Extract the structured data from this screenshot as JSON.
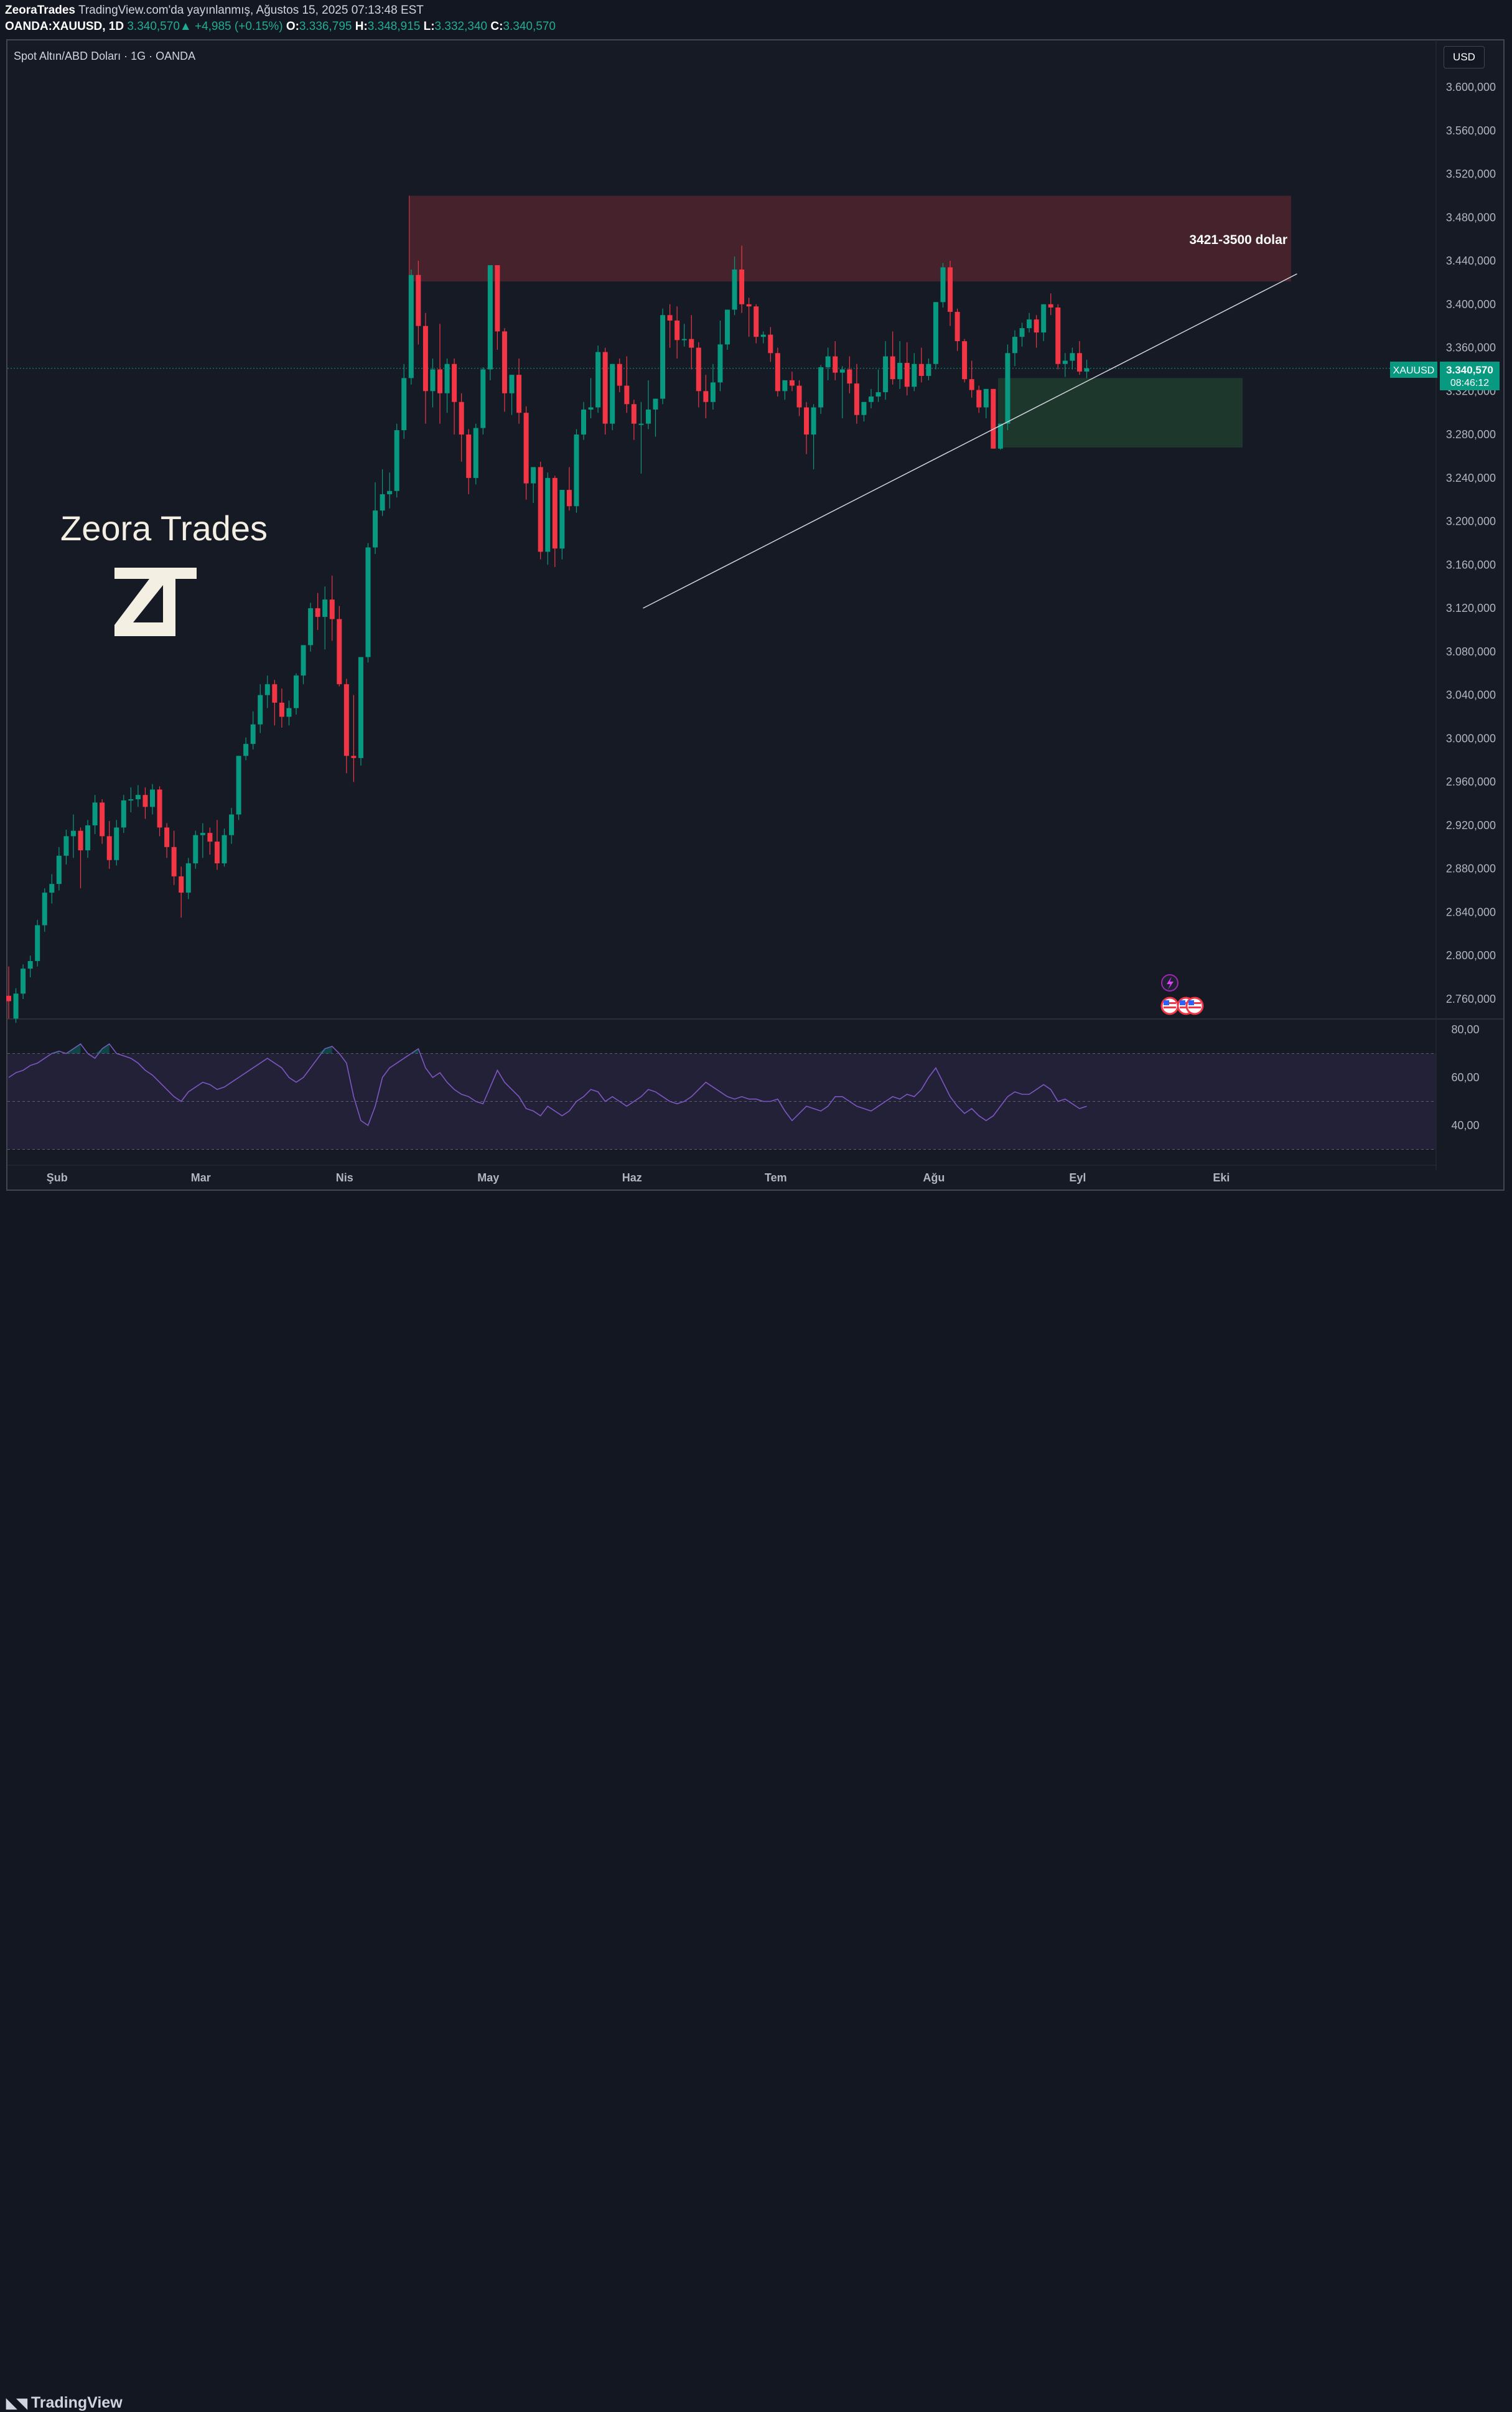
{
  "header": {
    "publisher": "ZeoraTrades",
    "published_text": "TradingView.com'da yayınlanmış, Ağustos 15, 2025 07:13:48 EST",
    "symbol_line": "OANDA:XAUUSD, 1D",
    "last": "3.340,570",
    "change_arrow": "▲",
    "change": "+4,985 (+0.15%)",
    "o_label": "O:",
    "o_value": "3.336,795",
    "h_label": "H:",
    "h_value": "3.348,915",
    "l_label": "L:",
    "l_value": "3.332,340",
    "c_label": "C:",
    "c_value": "3.340,570"
  },
  "pane": {
    "title": "Spot Altın/ABD Doları · 1G · OANDA",
    "currency_button": "USD"
  },
  "branding": {
    "watermark": "Zeora Trades",
    "logo": "ZT",
    "footer_logo": "TradingView"
  },
  "colors": {
    "up": "#089981",
    "down": "#f23645",
    "background": "#161a25",
    "resistance_zone": "#4b232d",
    "support_zone": "#1f3b2e",
    "rsi": "#7e57c2",
    "trendline": "#d1d4dc"
  },
  "price_label": {
    "symbol": "XAUUSD",
    "price": "3.340,570",
    "countdown": "08:46:12"
  },
  "annotation": {
    "zone_label": "3421-3500 dolar",
    "zone_low": 3421,
    "zone_high": 3500
  },
  "event_icons": [
    "lightning-icon",
    "us-flag-icon",
    "us-flag-icon",
    "us-flag-icon"
  ],
  "chart_data": {
    "type": "candlestick",
    "symbol": "OANDA:XAUUSD",
    "timeframe": "1D",
    "ylim": [
      2740,
      3640
    ],
    "y_ticks": [
      "3.600,000",
      "3.560,000",
      "3.520,000",
      "3.480,000",
      "3.440,000",
      "3.400,000",
      "3.360,000",
      "3.320,000",
      "3.280,000",
      "3.240,000",
      "3.200,000",
      "3.160,000",
      "3.120,000",
      "3.080,000",
      "3.040,000",
      "3.000,000",
      "2.960,000",
      "2.920,000",
      "2.880,000",
      "2.840,000",
      "2.800,000",
      "2.760,000"
    ],
    "y_tick_values": [
      3600,
      3560,
      3520,
      3480,
      3440,
      3400,
      3360,
      3320,
      3280,
      3240,
      3200,
      3160,
      3120,
      3080,
      3040,
      3000,
      2960,
      2920,
      2880,
      2840,
      2800,
      2760
    ],
    "x_ticks": [
      "Şub",
      "Mar",
      "Nis",
      "May",
      "Haz",
      "Tem",
      "Ağu",
      "Eyl",
      "Eki"
    ],
    "x_tick_bars": [
      5,
      25,
      45,
      65,
      85,
      105,
      127,
      147,
      167
    ],
    "candles": [
      [
        2763,
        2790,
        2758,
        2742
      ],
      [
        2742,
        2770,
        2765,
        2738
      ],
      [
        2765,
        2792,
        2788,
        2760
      ],
      [
        2788,
        2800,
        2795,
        2780
      ],
      [
        2795,
        2833,
        2828,
        2790
      ],
      [
        2828,
        2862,
        2858,
        2822
      ],
      [
        2858,
        2875,
        2866,
        2848
      ],
      [
        2866,
        2900,
        2892,
        2860
      ],
      [
        2892,
        2916,
        2910,
        2884
      ],
      [
        2910,
        2930,
        2915,
        2890
      ],
      [
        2915,
        2918,
        2897,
        2862
      ],
      [
        2897,
        2925,
        2920,
        2890
      ],
      [
        2920,
        2948,
        2941,
        2912
      ],
      [
        2941,
        2944,
        2910,
        2903
      ],
      [
        2910,
        2924,
        2888,
        2880
      ],
      [
        2888,
        2925,
        2918,
        2883
      ],
      [
        2918,
        2948,
        2943,
        2913
      ],
      [
        2943,
        2955,
        2944,
        2932
      ],
      [
        2944,
        2957,
        2948,
        2937
      ],
      [
        2948,
        2955,
        2937,
        2926
      ],
      [
        2937,
        2958,
        2953,
        2930
      ],
      [
        2953,
        2956,
        2918,
        2910
      ],
      [
        2918,
        2922,
        2900,
        2890
      ],
      [
        2900,
        2915,
        2873,
        2865
      ],
      [
        2873,
        2882,
        2858,
        2835
      ],
      [
        2858,
        2890,
        2885,
        2852
      ],
      [
        2885,
        2915,
        2911,
        2880
      ],
      [
        2911,
        2922,
        2913,
        2890
      ],
      [
        2913,
        2918,
        2905,
        2893
      ],
      [
        2905,
        2925,
        2885,
        2879
      ],
      [
        2885,
        2917,
        2911,
        2882
      ],
      [
        2911,
        2936,
        2930,
        2903
      ],
      [
        2930,
        2982,
        2984,
        2925
      ],
      [
        2984,
        3001,
        2995,
        2980
      ],
      [
        2995,
        3025,
        3013,
        2990
      ],
      [
        3013,
        3050,
        3040,
        3005
      ],
      [
        3040,
        3058,
        3050,
        3028
      ],
      [
        3050,
        3054,
        3033,
        3012
      ],
      [
        3033,
        3046,
        3020,
        3010
      ],
      [
        3020,
        3035,
        3028,
        3012
      ],
      [
        3028,
        3060,
        3058,
        3022
      ],
      [
        3058,
        3084,
        3086,
        3050
      ],
      [
        3086,
        3125,
        3120,
        3080
      ],
      [
        3120,
        3134,
        3112,
        3100
      ],
      [
        3112,
        3140,
        3128,
        3082
      ],
      [
        3128,
        3150,
        3110,
        3090
      ],
      [
        3110,
        3122,
        3050,
        3048
      ],
      [
        3050,
        3055,
        2984,
        2968
      ],
      [
        2984,
        3040,
        2982,
        2960
      ],
      [
        2982,
        3060,
        3075,
        2975
      ],
      [
        3075,
        3180,
        3176,
        3070
      ],
      [
        3176,
        3236,
        3210,
        3170
      ],
      [
        3210,
        3248,
        3225,
        3205
      ],
      [
        3225,
        3245,
        3228,
        3212
      ],
      [
        3228,
        3290,
        3284,
        3222
      ],
      [
        3284,
        3345,
        3332,
        3276
      ],
      [
        3332,
        3432,
        3427,
        3326
      ],
      [
        3427,
        3440,
        3380,
        3363
      ],
      [
        3380,
        3392,
        3320,
        3290
      ],
      [
        3320,
        3350,
        3340,
        3305
      ],
      [
        3340,
        3382,
        3318,
        3290
      ],
      [
        3318,
        3350,
        3345,
        3300
      ],
      [
        3345,
        3350,
        3310,
        3280
      ],
      [
        3310,
        3318,
        3280,
        3255
      ],
      [
        3280,
        3285,
        3240,
        3225
      ],
      [
        3240,
        3290,
        3286,
        3234
      ],
      [
        3286,
        3342,
        3340,
        3280
      ],
      [
        3340,
        3432,
        3436,
        3330
      ],
      [
        3436,
        3430,
        3375,
        3358
      ],
      [
        3375,
        3378,
        3318,
        3301
      ],
      [
        3318,
        3324,
        3335,
        3298
      ],
      [
        3335,
        3350,
        3300,
        3290
      ],
      [
        3300,
        3306,
        3235,
        3220
      ],
      [
        3235,
        3248,
        3250,
        3217
      ],
      [
        3250,
        3255,
        3172,
        3165
      ],
      [
        3172,
        3245,
        3240,
        3160
      ],
      [
        3240,
        3242,
        3175,
        3158
      ],
      [
        3175,
        3215,
        3229,
        3165
      ],
      [
        3229,
        3250,
        3214,
        3210
      ],
      [
        3214,
        3285,
        3280,
        3208
      ],
      [
        3280,
        3310,
        3303,
        3275
      ],
      [
        3303,
        3332,
        3305,
        3295
      ],
      [
        3305,
        3362,
        3356,
        3300
      ],
      [
        3356,
        3360,
        3290,
        3280
      ],
      [
        3290,
        3345,
        3345,
        3284
      ],
      [
        3345,
        3350,
        3325,
        3319
      ],
      [
        3325,
        3352,
        3308,
        3300
      ],
      [
        3308,
        3312,
        3290,
        3275
      ],
      [
        3290,
        3310,
        3290,
        3244
      ],
      [
        3290,
        3330,
        3303,
        3285
      ],
      [
        3303,
        3308,
        3313,
        3278
      ],
      [
        3313,
        3396,
        3390,
        3308
      ],
      [
        3390,
        3400,
        3385,
        3360
      ],
      [
        3385,
        3398,
        3367,
        3350
      ],
      [
        3367,
        3382,
        3368,
        3361
      ],
      [
        3368,
        3390,
        3360,
        3340
      ],
      [
        3360,
        3365,
        3320,
        3305
      ],
      [
        3320,
        3335,
        3310,
        3295
      ],
      [
        3310,
        3345,
        3328,
        3303
      ],
      [
        3328,
        3385,
        3363,
        3320
      ],
      [
        3363,
        3392,
        3395,
        3358
      ],
      [
        3395,
        3444,
        3432,
        3390
      ],
      [
        3432,
        3454,
        3400,
        3392
      ],
      [
        3400,
        3406,
        3398,
        3370
      ],
      [
        3398,
        3400,
        3370,
        3364
      ],
      [
        3370,
        3375,
        3372,
        3364
      ],
      [
        3372,
        3379,
        3355,
        3347
      ],
      [
        3355,
        3360,
        3320,
        3315
      ],
      [
        3320,
        3330,
        3330,
        3312
      ],
      [
        3330,
        3338,
        3325,
        3320
      ],
      [
        3325,
        3330,
        3305,
        3297
      ],
      [
        3305,
        3310,
        3280,
        3262
      ],
      [
        3280,
        3308,
        3305,
        3248
      ],
      [
        3305,
        3344,
        3342,
        3299
      ],
      [
        3342,
        3360,
        3352,
        3330
      ],
      [
        3352,
        3366,
        3337,
        3330
      ],
      [
        3337,
        3343,
        3340,
        3295
      ],
      [
        3340,
        3352,
        3327,
        3318
      ],
      [
        3327,
        3345,
        3298,
        3290
      ],
      [
        3298,
        3302,
        3310,
        3292
      ],
      [
        3310,
        3322,
        3315,
        3304
      ],
      [
        3315,
        3340,
        3319,
        3310
      ],
      [
        3319,
        3366,
        3352,
        3312
      ],
      [
        3352,
        3375,
        3331,
        3326
      ],
      [
        3331,
        3366,
        3346,
        3322
      ],
      [
        3346,
        3365,
        3324,
        3316
      ],
      [
        3324,
        3355,
        3345,
        3320
      ],
      [
        3345,
        3360,
        3334,
        3328
      ],
      [
        3334,
        3350,
        3345,
        3330
      ],
      [
        3345,
        3398,
        3402,
        3340
      ],
      [
        3402,
        3438,
        3434,
        3397
      ],
      [
        3434,
        3440,
        3393,
        3380
      ],
      [
        3393,
        3396,
        3366,
        3357
      ],
      [
        3366,
        3368,
        3331,
        3328
      ],
      [
        3331,
        3348,
        3321,
        3314
      ],
      [
        3321,
        3325,
        3305,
        3300
      ],
      [
        3305,
        3320,
        3322,
        3295
      ],
      [
        3322,
        3318,
        3267,
        3270
      ],
      [
        3267,
        3288,
        3290,
        3266
      ],
      [
        3290,
        3363,
        3355,
        3284
      ],
      [
        3355,
        3376,
        3370,
        3343
      ],
      [
        3370,
        3383,
        3378,
        3361
      ],
      [
        3378,
        3392,
        3386,
        3374
      ],
      [
        3386,
        3390,
        3374,
        3360
      ],
      [
        3374,
        3400,
        3400,
        3366
      ],
      [
        3400,
        3410,
        3397,
        3390
      ],
      [
        3397,
        3400,
        3345,
        3340
      ],
      [
        3345,
        3355,
        3348,
        3333
      ],
      [
        3348,
        3360,
        3355,
        3340
      ],
      [
        3355,
        3366,
        3338,
        3335
      ],
      [
        3338,
        3349,
        3341,
        3332
      ]
    ],
    "resistance_zone": [
      3421,
      3500
    ],
    "support_zone": [
      3268,
      3332
    ],
    "trendline": [
      [
        88,
        3120
      ],
      [
        179,
        3428
      ]
    ],
    "rsi": {
      "ylim": [
        30,
        85
      ],
      "y_ticks": [
        "80,00",
        "60,00",
        "40,00"
      ],
      "y_tick_values": [
        80,
        60,
        40
      ],
      "upper_band": 70,
      "lower_band": 30,
      "mid": 50,
      "values": [
        60,
        62,
        63,
        65,
        66,
        68,
        70,
        71,
        70,
        72,
        74,
        70,
        68,
        72,
        74,
        70,
        69,
        68,
        66,
        63,
        61,
        58,
        55,
        52,
        50,
        54,
        56,
        58,
        57,
        55,
        56,
        58,
        60,
        62,
        64,
        66,
        68,
        66,
        64,
        60,
        58,
        60,
        64,
        68,
        72,
        73,
        70,
        66,
        52,
        42,
        40,
        48,
        60,
        64,
        66,
        68,
        70,
        72,
        64,
        60,
        62,
        58,
        55,
        53,
        52,
        50,
        49,
        56,
        63,
        58,
        55,
        52,
        47,
        46,
        44,
        48,
        46,
        44,
        46,
        50,
        52,
        55,
        54,
        50,
        52,
        50,
        48,
        50,
        52,
        55,
        54,
        52,
        50,
        49,
        50,
        52,
        55,
        58,
        56,
        54,
        52,
        51,
        52,
        51,
        51,
        50,
        50,
        51,
        46,
        42,
        45,
        48,
        47,
        46,
        48,
        52,
        52,
        50,
        48,
        47,
        46,
        48,
        50,
        52,
        51,
        53,
        52,
        55,
        60,
        64,
        58,
        52,
        48,
        45,
        47,
        44,
        42,
        44,
        48,
        52,
        54,
        53,
        53,
        55,
        57,
        55,
        50,
        51,
        49,
        47,
        48
      ]
    }
  }
}
